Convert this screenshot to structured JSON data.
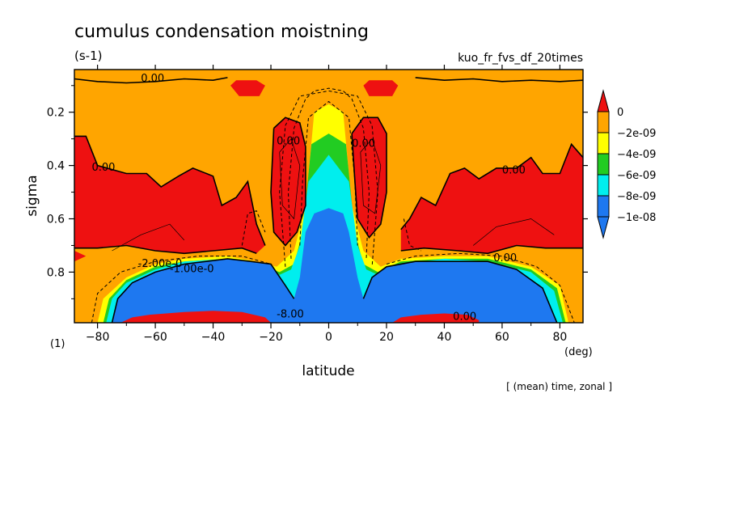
{
  "chart_data": {
    "type": "heatmap",
    "title": "cumulus condensation moistning",
    "units": "(s-1)",
    "run_label": "kuo_fr_fvs_df_20times",
    "xlabel": "latitude",
    "x_unit": "(deg)",
    "ylabel": "sigma",
    "y_unit": "(1)",
    "footer": "[ (mean) time, zonal ]",
    "xlim": [
      -88,
      88
    ],
    "ylim": [
      0.04,
      0.99
    ],
    "y_reversed": true,
    "x_ticks": [
      -80,
      -60,
      -40,
      -20,
      0,
      20,
      40,
      60,
      80
    ],
    "y_ticks": [
      0.2,
      0.4,
      0.6,
      0.8
    ],
    "colors": {
      "pos": "#ee1111",
      "l0": "#ffa500",
      "l1": "#ffff00",
      "l2": "#22cc22",
      "l3": "#00eeee",
      "l4": "#1e78f0"
    },
    "legend": {
      "placement": "right",
      "levels": [
        "0",
        "-2e-09",
        "-4e-09",
        "-6e-09",
        "-8e-09",
        "-1e-08"
      ]
    },
    "contour_labels": [
      {
        "text": "0.00",
        "lat": -65,
        "sig": 0.085
      },
      {
        "text": "0.00",
        "lat": -82,
        "sig": 0.42
      },
      {
        "text": "0.00",
        "lat": 60,
        "sig": 0.43
      },
      {
        "text": "0.00",
        "lat": -18,
        "sig": 0.32
      },
      {
        "text": "0.00",
        "lat": 8,
        "sig": 0.33
      },
      {
        "text": "0.00",
        "lat": 57,
        "sig": 0.76
      },
      {
        "text": "0.00",
        "lat": 43,
        "sig": 0.98
      },
      {
        "text": "-8.00",
        "lat": -18,
        "sig": 0.97
      },
      {
        "text": "-1.00e-0",
        "lat": -55,
        "sig": 0.8
      },
      {
        "text": "-2.00e-0",
        "lat": -66,
        "sig": 0.78
      }
    ]
  }
}
